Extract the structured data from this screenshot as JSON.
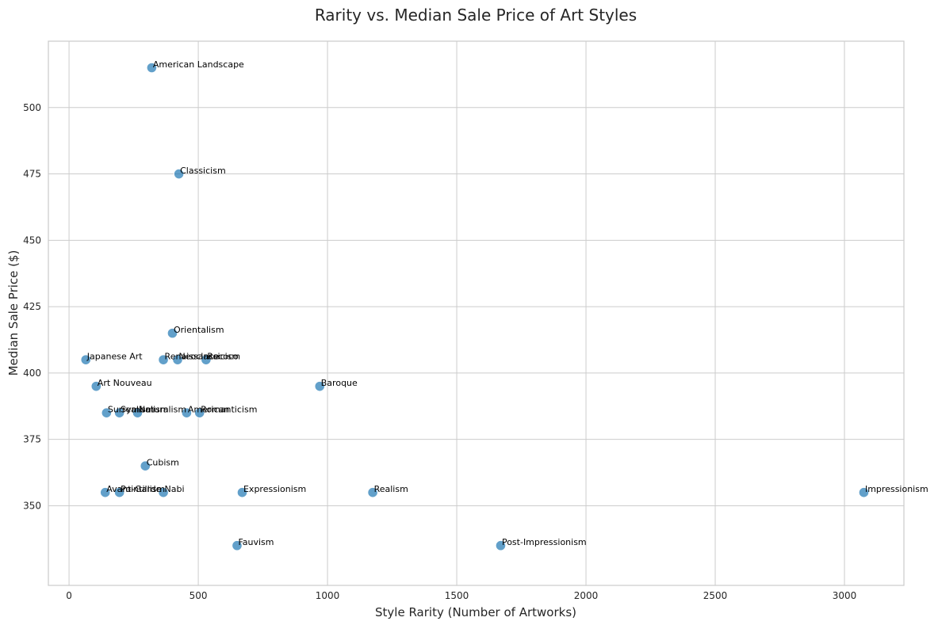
{
  "chart_data": {
    "type": "scatter",
    "title": "Rarity vs. Median Sale Price of Art Styles",
    "xlabel": "Style Rarity (Number of Artworks)",
    "ylabel": "Median Sale Price ($)",
    "xlim": [
      -80,
      3230
    ],
    "ylim": [
      320,
      525
    ],
    "xticks": [
      0,
      500,
      1000,
      1500,
      2000,
      2500,
      3000
    ],
    "yticks": [
      350,
      375,
      400,
      425,
      450,
      475,
      500
    ],
    "grid": true,
    "point_color": "#1f77b4",
    "points": [
      {
        "label": "American Landscape",
        "x": 320,
        "y": 515
      },
      {
        "label": "Classicism",
        "x": 425,
        "y": 475
      },
      {
        "label": "Orientalism",
        "x": 400,
        "y": 415
      },
      {
        "label": "Japanese Art",
        "x": 65,
        "y": 405
      },
      {
        "label": "Renaissance",
        "x": 365,
        "y": 405
      },
      {
        "label": "Neoclassicism",
        "x": 420,
        "y": 405
      },
      {
        "label": "Rococo",
        "x": 530,
        "y": 405
      },
      {
        "label": "Art Nouveau",
        "x": 105,
        "y": 395
      },
      {
        "label": "Baroque",
        "x": 970,
        "y": 395
      },
      {
        "label": "Surrealism",
        "x": 145,
        "y": 385
      },
      {
        "label": "Symbolism",
        "x": 195,
        "y": 385
      },
      {
        "label": "Naturalism",
        "x": 265,
        "y": 385
      },
      {
        "label": "American",
        "x": 455,
        "y": 385
      },
      {
        "label": "Romanticism",
        "x": 505,
        "y": 385
      },
      {
        "label": "Cubism",
        "x": 295,
        "y": 365
      },
      {
        "label": "Avant-Garde",
        "x": 140,
        "y": 355
      },
      {
        "label": "Pointillism",
        "x": 195,
        "y": 355
      },
      {
        "label": "Nabi",
        "x": 365,
        "y": 355
      },
      {
        "label": "Expressionism",
        "x": 670,
        "y": 355
      },
      {
        "label": "Realism",
        "x": 1175,
        "y": 355
      },
      {
        "label": "Impressionism",
        "x": 3075,
        "y": 355
      },
      {
        "label": "Fauvism",
        "x": 650,
        "y": 335
      },
      {
        "label": "Post-Impressionism",
        "x": 1670,
        "y": 335
      }
    ]
  }
}
